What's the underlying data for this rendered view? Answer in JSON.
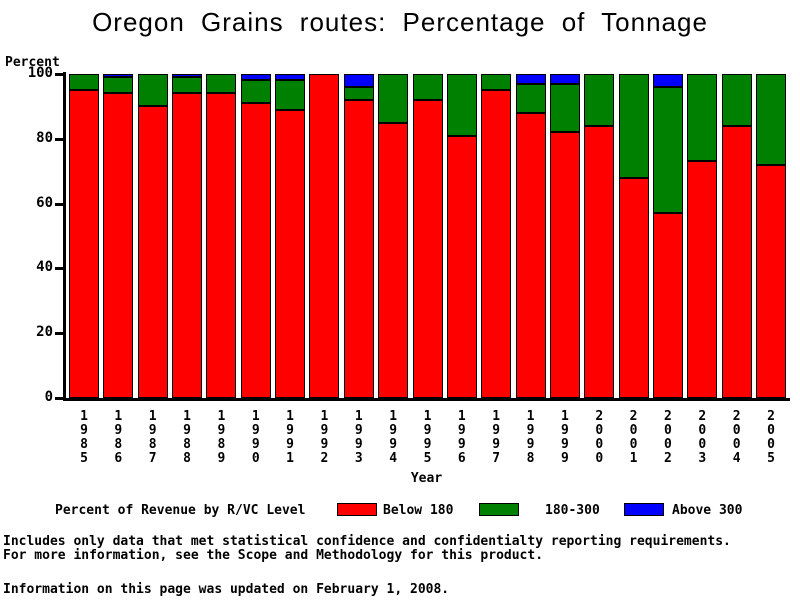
{
  "title": "Oregon Grains routes: Percentage of Tonnage",
  "chart_data": {
    "type": "bar",
    "stacked": true,
    "title": "Oregon Grains routes: Percentage of Tonnage",
    "ylabel": "Percent",
    "xlabel": "Year",
    "ylim": [
      0,
      100
    ],
    "yticks": [
      0,
      20,
      40,
      60,
      80,
      100
    ],
    "grid": false,
    "legend_title": "Percent of Revenue by R/VC Level",
    "legend_position": "bottom",
    "categories": [
      "1985",
      "1986",
      "1987",
      "1988",
      "1989",
      "1990",
      "1991",
      "1992",
      "1993",
      "1994",
      "1995",
      "1996",
      "1997",
      "1998",
      "1999",
      "2000",
      "2001",
      "2002",
      "2003",
      "2004",
      "2005"
    ],
    "series": [
      {
        "name": "Below 180",
        "color": "#ff0000",
        "values": [
          95,
          94,
          90,
          94,
          94,
          91,
          89,
          100,
          92,
          85,
          92,
          81,
          95,
          88,
          82,
          84,
          68,
          57,
          73,
          84,
          72
        ]
      },
      {
        "name": "180-300",
        "color": "#008000",
        "values": [
          5,
          5,
          10,
          5,
          6,
          7,
          9,
          0,
          4,
          15,
          8,
          19,
          5,
          9,
          15,
          16,
          32,
          39,
          27,
          16,
          28
        ]
      },
      {
        "name": "Above 300",
        "color": "#0000ff",
        "values": [
          0,
          1,
          0,
          1,
          0,
          2,
          2,
          0,
          4,
          0,
          0,
          0,
          0,
          3,
          3,
          0,
          0,
          4,
          0,
          0,
          0
        ]
      }
    ]
  },
  "footnotes": [
    "Includes only data that met statistical confidence and confidentialty reporting requirements.",
    "For more information, see the Scope and Methodology for this product."
  ],
  "updated_note": "Information on this page was updated on February 1, 2008."
}
